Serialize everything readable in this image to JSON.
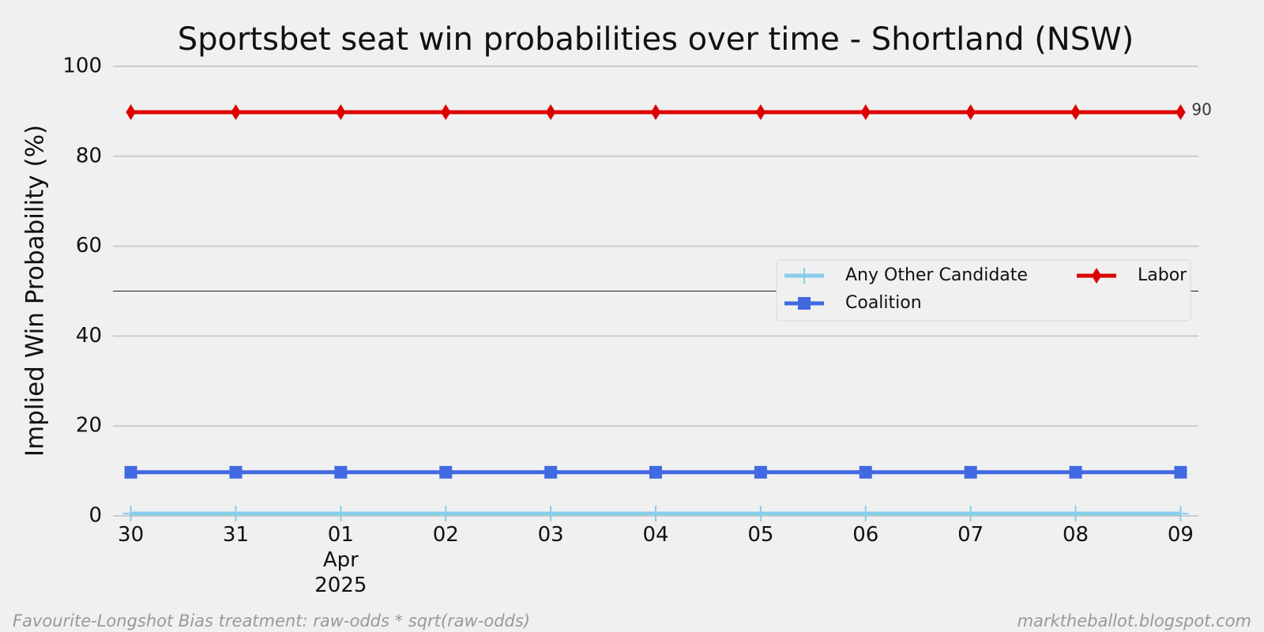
{
  "chart_data": {
    "type": "line",
    "title": "Sportsbet seat win probabilities over time - Shortland (NSW)",
    "ylabel": "Implied Win Probability (%)",
    "categories": [
      "30",
      "31",
      "01\nApr\n2025",
      "02",
      "03",
      "04",
      "05",
      "06",
      "07",
      "08",
      "09"
    ],
    "series": [
      {
        "name": "Any Other Candidate",
        "color": "#87ceeb",
        "marker": "plus",
        "values": [
          0.5,
          0.5,
          0.5,
          0.5,
          0.5,
          0.5,
          0.5,
          0.5,
          0.5,
          0.5,
          0.5
        ]
      },
      {
        "name": "Coalition",
        "color": "#4169e1",
        "marker": "square",
        "values": [
          9.7,
          9.7,
          9.7,
          9.7,
          9.7,
          9.7,
          9.7,
          9.7,
          9.7,
          9.7,
          9.7
        ]
      },
      {
        "name": "Labor",
        "color": "#dd0000",
        "marker": "diamond",
        "values": [
          89.8,
          89.8,
          89.8,
          89.8,
          89.8,
          89.8,
          89.8,
          89.8,
          89.8,
          89.8,
          89.8
        ],
        "value_labels": [
          null,
          null,
          null,
          null,
          null,
          null,
          null,
          null,
          null,
          null,
          "90"
        ]
      }
    ],
    "ylim": [
      0,
      100
    ],
    "yticks": [
      0,
      20,
      40,
      60,
      80,
      100
    ],
    "grid": true,
    "hline": 50,
    "legend": {
      "location": "center right",
      "columns": 2
    },
    "footnote_left": "Favourite-Longshot Bias treatment: raw-odds * sqrt(raw-odds)",
    "footnote_right": "marktheballot.blogspot.com"
  }
}
